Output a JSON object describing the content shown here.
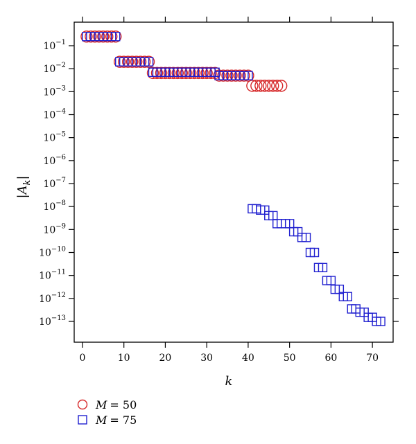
{
  "chart_data": {
    "type": "scatter",
    "xlabel": "k",
    "ylabel": "|A_k|",
    "xlim": [
      -2,
      75
    ],
    "ylim_exponent": [
      -14,
      0
    ],
    "yscale": "log",
    "x_ticks": [
      0,
      10,
      20,
      30,
      40,
      50,
      60,
      70
    ],
    "y_ticks_exponent": [
      -1,
      -2,
      -3,
      -4,
      -5,
      -6,
      -7,
      -8,
      -9,
      -10,
      -11,
      -12,
      -13
    ],
    "grid": false,
    "legend_position": "bottom-left-below",
    "series": [
      {
        "name": "M = 50",
        "legend_var": "M",
        "legend_value": "= 50",
        "marker": "circle",
        "color": "#d62728",
        "x": [
          1,
          2,
          3,
          4,
          5,
          6,
          7,
          8,
          9,
          10,
          11,
          12,
          13,
          14,
          15,
          16,
          17,
          18,
          19,
          20,
          21,
          22,
          23,
          24,
          25,
          26,
          27,
          28,
          29,
          30,
          31,
          32,
          33,
          34,
          35,
          36,
          37,
          38,
          39,
          40,
          41,
          42,
          43,
          44,
          45,
          46,
          47,
          48
        ],
        "y": [
          0.25,
          0.25,
          0.25,
          0.25,
          0.25,
          0.25,
          0.25,
          0.25,
          0.02,
          0.02,
          0.02,
          0.02,
          0.02,
          0.02,
          0.02,
          0.02,
          0.0065,
          0.0065,
          0.0065,
          0.0065,
          0.0065,
          0.0065,
          0.0065,
          0.0065,
          0.0065,
          0.0065,
          0.0065,
          0.0065,
          0.0065,
          0.0065,
          0.0065,
          0.0065,
          0.005,
          0.005,
          0.005,
          0.005,
          0.005,
          0.005,
          0.005,
          0.005,
          0.0018,
          0.0018,
          0.0018,
          0.0018,
          0.0018,
          0.0018,
          0.0018,
          0.0018
        ]
      },
      {
        "name": "M = 75",
        "legend_var": "M",
        "legend_value": "= 75",
        "marker": "square",
        "color": "#1f1fcf",
        "x": [
          1,
          2,
          3,
          4,
          5,
          6,
          7,
          8,
          9,
          10,
          11,
          12,
          13,
          14,
          15,
          16,
          17,
          18,
          19,
          20,
          21,
          22,
          23,
          24,
          25,
          26,
          27,
          28,
          29,
          30,
          31,
          32,
          33,
          34,
          35,
          36,
          37,
          38,
          39,
          40,
          41,
          42,
          43,
          44,
          45,
          46,
          47,
          48,
          49,
          50,
          51,
          52,
          53,
          54,
          55,
          56,
          57,
          58,
          59,
          60,
          61,
          62,
          63,
          64,
          65,
          66,
          67,
          68,
          69,
          70,
          71,
          72
        ],
        "y": [
          0.25,
          0.25,
          0.25,
          0.25,
          0.25,
          0.25,
          0.25,
          0.25,
          0.02,
          0.02,
          0.02,
          0.02,
          0.02,
          0.02,
          0.02,
          0.02,
          0.007,
          0.007,
          0.007,
          0.007,
          0.007,
          0.007,
          0.007,
          0.007,
          0.007,
          0.007,
          0.007,
          0.007,
          0.007,
          0.007,
          0.007,
          0.007,
          0.005,
          0.005,
          0.005,
          0.005,
          0.005,
          0.005,
          0.005,
          0.005,
          8e-09,
          8e-09,
          7e-09,
          7e-09,
          4e-09,
          4e-09,
          1.8e-09,
          1.8e-09,
          1.8e-09,
          1.8e-09,
          8e-10,
          8e-10,
          4.5e-10,
          4.5e-10,
          1e-10,
          1e-10,
          2.2e-11,
          2.2e-11,
          6e-12,
          6e-12,
          2.5e-12,
          2.5e-12,
          1.2e-12,
          1.2e-12,
          3.5e-13,
          3.5e-13,
          2.5e-13,
          2.5e-13,
          1.5e-13,
          1.5e-13,
          1e-13,
          1e-13
        ]
      }
    ]
  }
}
